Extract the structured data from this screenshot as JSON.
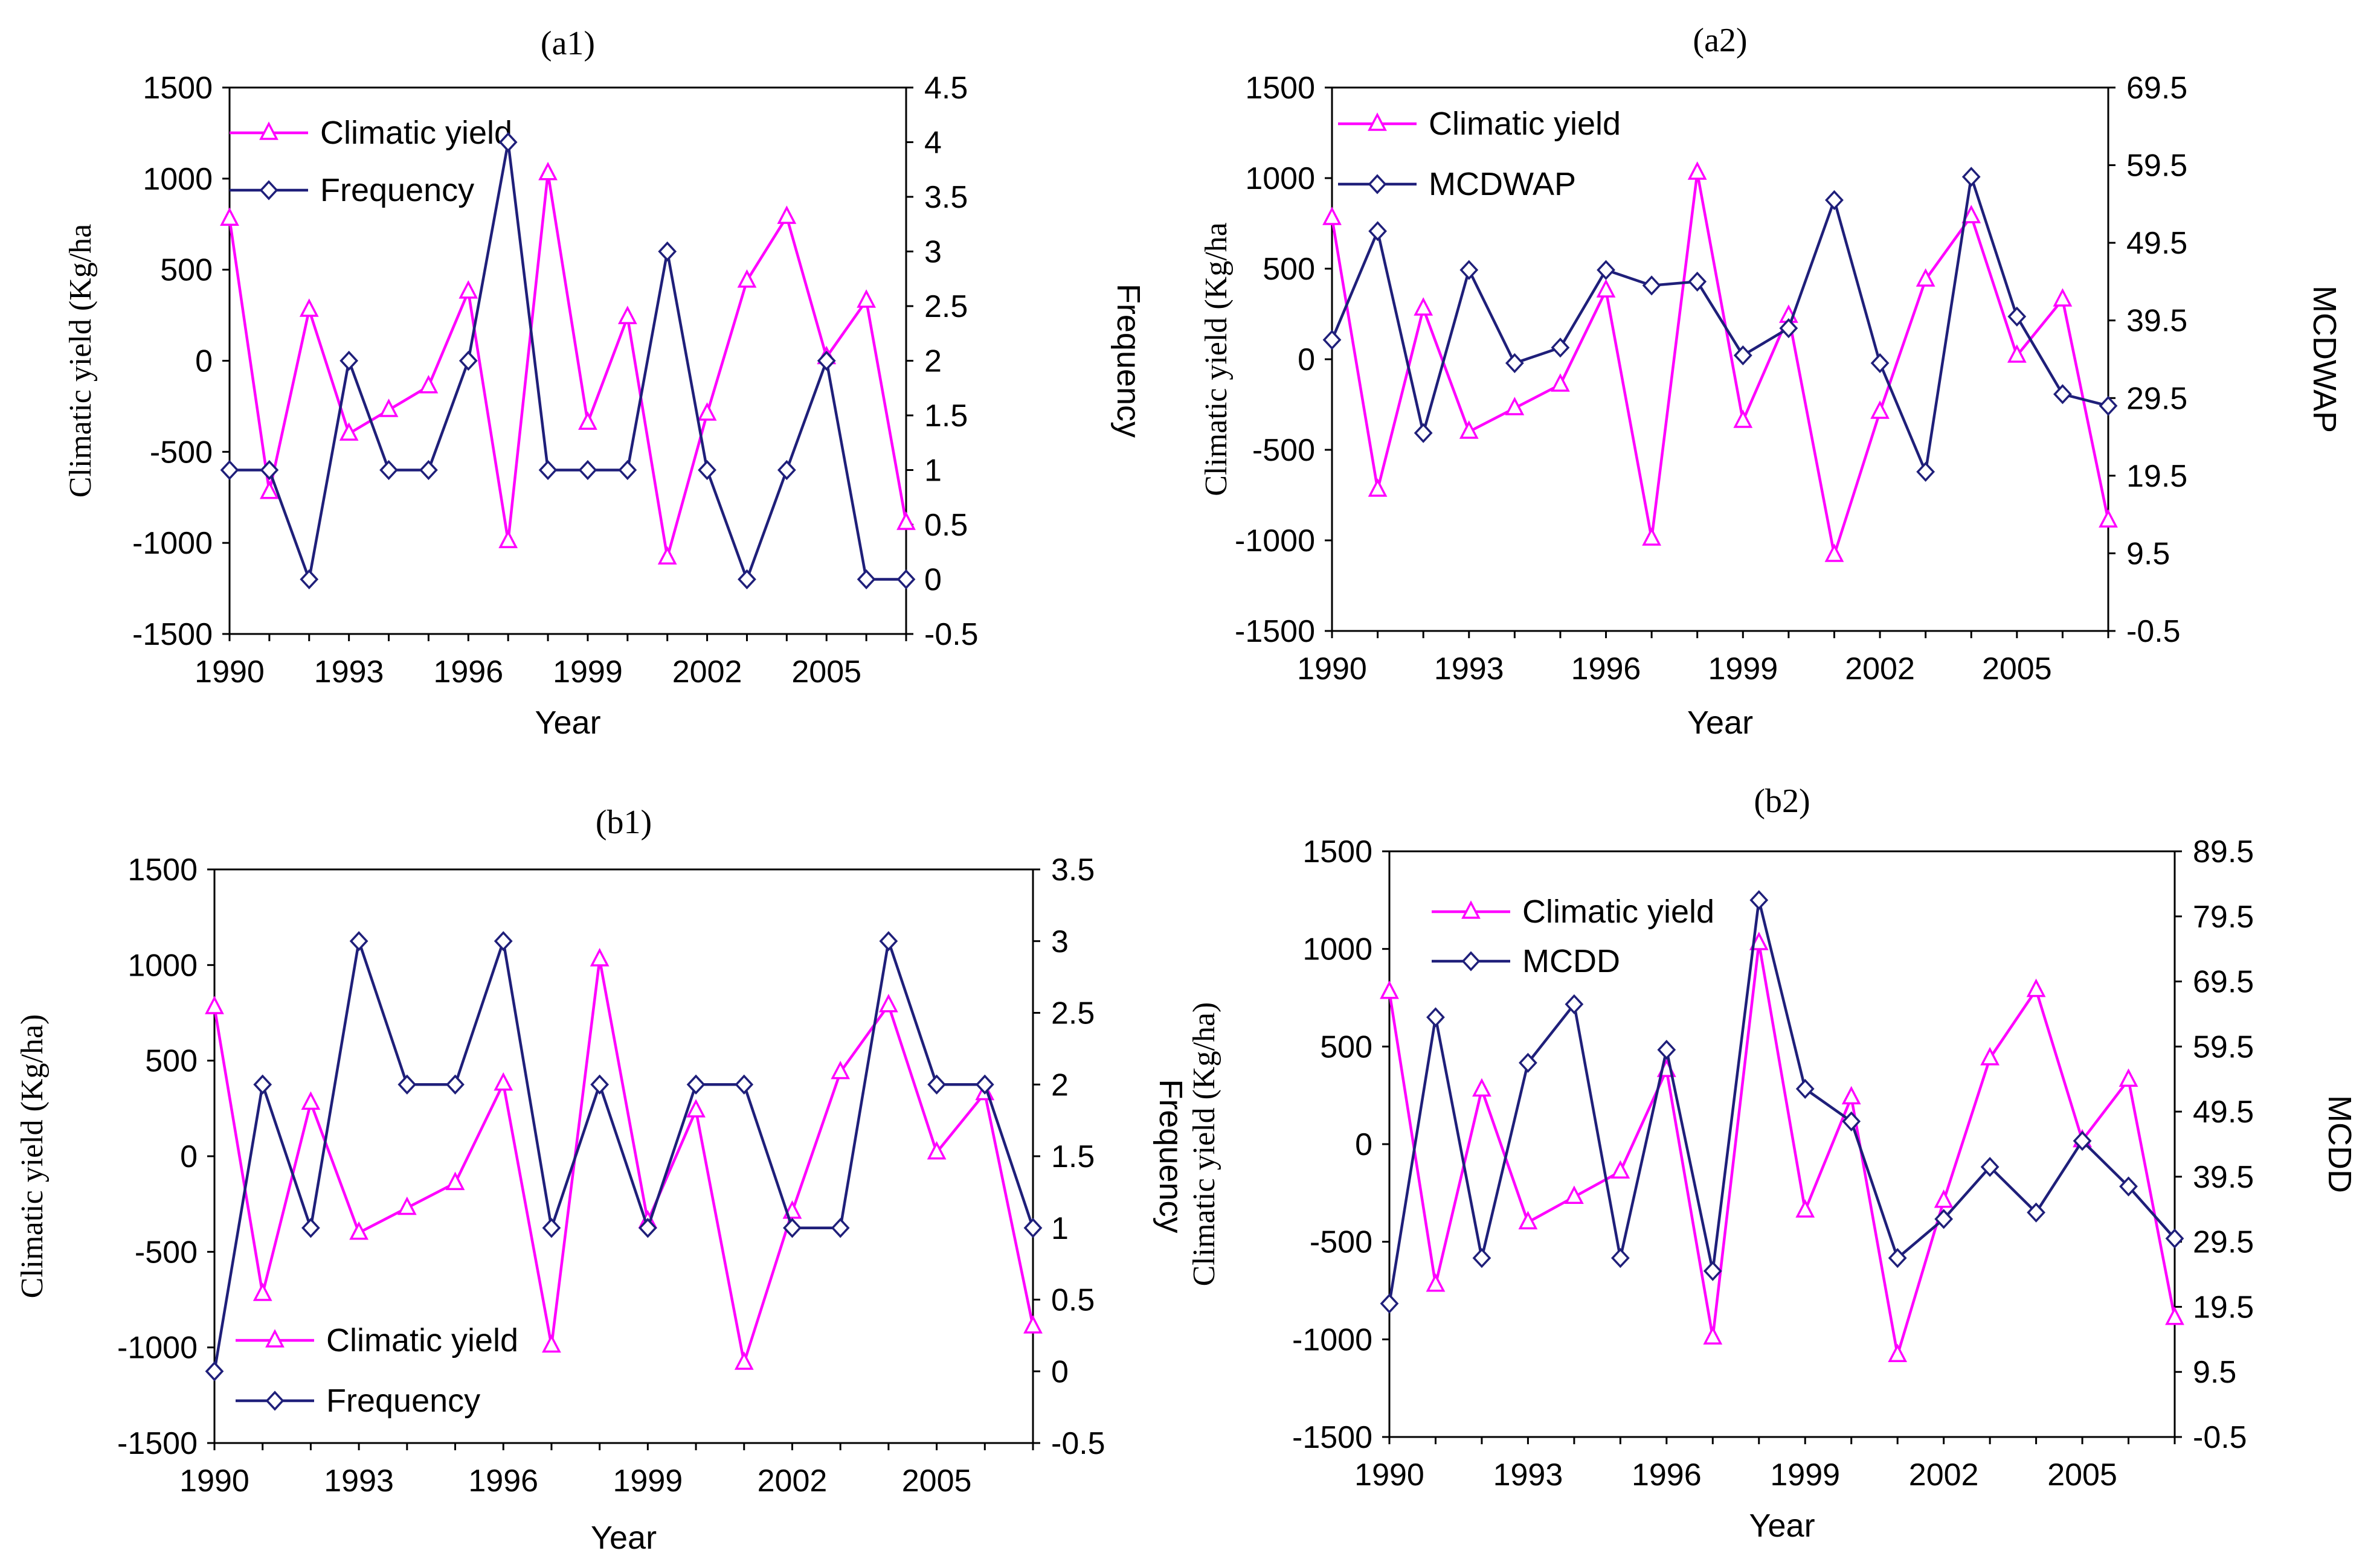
{
  "colors": {
    "climatic": "#ff00ff",
    "indicator": "#1f1f7a",
    "frame": "#000000"
  },
  "chart_data": [
    {
      "type": "line",
      "title": "(a1)",
      "xlabel": "Year",
      "ylabel": "Climatic yield (Kg/ha",
      "y2label": "Frequency",
      "xlim": [
        1990,
        2007
      ],
      "xticks": [
        1990,
        1993,
        1996,
        1999,
        2002,
        2005
      ],
      "ylim": [
        -1500,
        1500
      ],
      "yticks": [
        -1500,
        -1000,
        -500,
        0,
        500,
        1000,
        1500
      ],
      "y2lim": [
        -0.5,
        4.5
      ],
      "y2ticks": [
        "-0.5",
        "0",
        "0.5",
        "1",
        "1.5",
        "2",
        "2.5",
        "3",
        "3.5",
        "4",
        "4.5"
      ],
      "legend": "top-left",
      "x": [
        1990,
        1991,
        1992,
        1993,
        1994,
        1995,
        1996,
        1997,
        1998,
        1999,
        2000,
        2001,
        2002,
        2003,
        2004,
        2005,
        2006,
        2007
      ],
      "series": [
        {
          "name": "Climatic yield",
          "axis": "left",
          "marker": "triangle",
          "color": "#ff00ff",
          "values": [
            780,
            -720,
            280,
            -400,
            -270,
            -140,
            380,
            -990,
            1030,
            -340,
            240,
            -1080,
            -290,
            440,
            790,
            20,
            330,
            -890
          ]
        },
        {
          "name": "Frequency",
          "axis": "right",
          "marker": "diamond",
          "color": "#1f1f7a",
          "values": [
            1,
            1,
            0,
            2,
            1,
            1,
            2,
            4,
            1,
            1,
            1,
            3,
            1,
            0,
            1,
            2,
            0,
            0
          ]
        }
      ]
    },
    {
      "type": "line",
      "title": "(a2)",
      "xlabel": "Year",
      "ylabel": "Climatic yield (Kg/ha",
      "y2label": "MCDWAP",
      "xlim": [
        1990,
        2007
      ],
      "xticks": [
        1990,
        1993,
        1996,
        1999,
        2002,
        2005
      ],
      "ylim": [
        -1500,
        1500
      ],
      "yticks": [
        -1500,
        -1000,
        -500,
        0,
        500,
        1000,
        1500
      ],
      "y2lim": [
        -0.5,
        69.5
      ],
      "y2ticks": [
        "-0.5",
        "9.5",
        "19.5",
        "29.5",
        "39.5",
        "49.5",
        "59.5",
        "69.5"
      ],
      "legend": "top-left",
      "x": [
        1990,
        1991,
        1992,
        1993,
        1994,
        1995,
        1996,
        1997,
        1998,
        1999,
        2000,
        2001,
        2002,
        2003,
        2004,
        2005,
        2006,
        2007
      ],
      "series": [
        {
          "name": "Climatic yield",
          "axis": "left",
          "marker": "triangle",
          "color": "#ff00ff",
          "values": [
            780,
            -720,
            280,
            -400,
            -270,
            -140,
            380,
            -990,
            1030,
            -340,
            240,
            -1080,
            -290,
            440,
            790,
            20,
            330,
            -890
          ]
        },
        {
          "name": "MCDWAP",
          "axis": "right",
          "marker": "diamond",
          "color": "#1f1f7a",
          "values": [
            37,
            51,
            25,
            46,
            34,
            36,
            46,
            44,
            44.5,
            35,
            38.5,
            55,
            34,
            20,
            58,
            40,
            30,
            28.5
          ]
        }
      ]
    },
    {
      "type": "line",
      "title": "(b1)",
      "xlabel": "Year",
      "ylabel": "Climatic yield (Kg/ha)",
      "y2label": "Frequency",
      "xlim": [
        1990,
        2007
      ],
      "xticks": [
        1990,
        1993,
        1996,
        1999,
        2002,
        2005
      ],
      "ylim": [
        -1500,
        1500
      ],
      "yticks": [
        -1500,
        -1000,
        -500,
        0,
        500,
        1000,
        1500
      ],
      "y2lim": [
        -0.5,
        3.5
      ],
      "y2ticks": [
        "-0.5",
        "0",
        "0.5",
        "1",
        "1.5",
        "2",
        "2.5",
        "3",
        "3.5"
      ],
      "legend": "bottom-left",
      "x": [
        1990,
        1991,
        1992,
        1993,
        1994,
        1995,
        1996,
        1997,
        1998,
        1999,
        2000,
        2001,
        2002,
        2003,
        2004,
        2005,
        2006,
        2007
      ],
      "series": [
        {
          "name": "Climatic yield",
          "axis": "left",
          "marker": "triangle",
          "color": "#ff00ff",
          "values": [
            780,
            -720,
            280,
            -400,
            -270,
            -140,
            380,
            -990,
            1030,
            -340,
            240,
            -1080,
            -290,
            440,
            790,
            20,
            330,
            -890
          ]
        },
        {
          "name": "Frequency",
          "axis": "right",
          "marker": "diamond",
          "color": "#1f1f7a",
          "values": [
            0,
            2,
            1,
            3,
            2,
            2,
            3,
            1,
            2,
            1,
            2,
            2,
            1,
            1,
            3,
            2,
            2,
            1
          ]
        }
      ]
    },
    {
      "type": "line",
      "title": "(b2)",
      "xlabel": "Year",
      "ylabel": "Climatic yield (Kg/ha)",
      "y2label": "MCDD",
      "xlim": [
        1990,
        2007
      ],
      "xticks": [
        1990,
        1993,
        1996,
        1999,
        2002,
        2005
      ],
      "ylim": [
        -1500,
        1500
      ],
      "yticks": [
        -1500,
        -1000,
        -500,
        0,
        500,
        1000,
        1500
      ],
      "y2lim": [
        -0.5,
        89.5
      ],
      "y2ticks": [
        "-0.5",
        "9.5",
        "19.5",
        "29.5",
        "39.5",
        "49.5",
        "59.5",
        "69.5",
        "79.5",
        "89.5"
      ],
      "legend": "top-left",
      "x": [
        1990,
        1991,
        1992,
        1993,
        1994,
        1995,
        1996,
        1997,
        1998,
        1999,
        2000,
        2001,
        2002,
        2003,
        2004,
        2005,
        2006,
        2007
      ],
      "series": [
        {
          "name": "Climatic yield",
          "axis": "left",
          "marker": "triangle",
          "color": "#ff00ff",
          "values": [
            780,
            -720,
            280,
            -400,
            -270,
            -140,
            380,
            -990,
            1030,
            -340,
            240,
            -1080,
            -290,
            440,
            790,
            20,
            330,
            -890
          ]
        },
        {
          "name": "MCDD",
          "axis": "right",
          "marker": "diamond",
          "color": "#1f1f7a",
          "values": [
            20,
            64,
            27,
            57,
            66,
            27,
            59,
            25,
            82,
            53,
            48,
            27,
            33,
            41,
            34,
            45,
            38,
            30
          ]
        }
      ]
    }
  ]
}
